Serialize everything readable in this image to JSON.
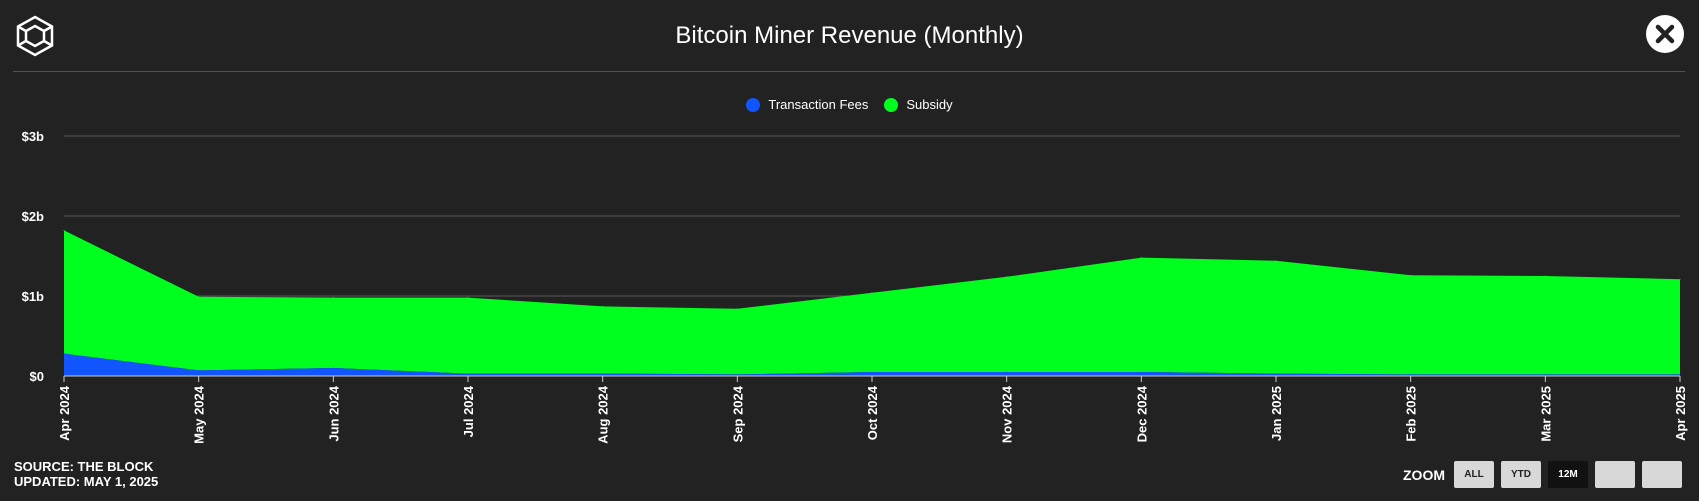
{
  "header": {
    "title": "Bitcoin Miner Revenue (Monthly)"
  },
  "colors": {
    "accent_line": "#8a1fd0",
    "transaction_fees": "#1155ff",
    "subsidy": "#00ff1e"
  },
  "chart_data": {
    "type": "area",
    "stacked": true,
    "title": "Bitcoin Miner Revenue (Monthly)",
    "x": [
      "Apr 2024",
      "May 2024",
      "Jun 2024",
      "Jul 2024",
      "Aug 2024",
      "Sep 2024",
      "Oct 2024",
      "Nov 2024",
      "Dec 2024",
      "Jan 2025",
      "Feb 2025",
      "Mar 2025",
      "Apr 2025"
    ],
    "series": [
      {
        "name": "Transaction Fees",
        "color": "#1155ff",
        "values": [
          0.28,
          0.07,
          0.1,
          0.03,
          0.03,
          0.02,
          0.05,
          0.05,
          0.05,
          0.03,
          0.02,
          0.02,
          0.02
        ]
      },
      {
        "name": "Subsidy",
        "color": "#00ff1e",
        "values": [
          1.54,
          0.92,
          0.88,
          0.95,
          0.84,
          0.82,
          0.99,
          1.19,
          1.43,
          1.41,
          1.24,
          1.23,
          1.19
        ]
      }
    ],
    "y_ticks": [
      {
        "value": 0,
        "label": "$0"
      },
      {
        "value": 1,
        "label": "$1b"
      },
      {
        "value": 2,
        "label": "$2b"
      },
      {
        "value": 3,
        "label": "$3b"
      }
    ],
    "ylim": [
      0,
      3
    ],
    "grid": true,
    "legend_position": "top-center"
  },
  "footer": {
    "source": "SOURCE: THE BLOCK",
    "updated": "UPDATED: MAY 1, 2025"
  },
  "zoom": {
    "label": "ZOOM",
    "buttons": [
      "ALL",
      "YTD",
      "12M",
      "",
      ""
    ],
    "active": "12M"
  }
}
